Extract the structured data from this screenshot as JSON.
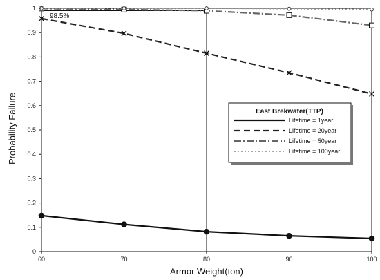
{
  "chart_data": {
    "type": "line",
    "title": "",
    "xlabel": "Armor Weight(ton)",
    "ylabel": "Probability Failure",
    "xlim": [
      60,
      100
    ],
    "ylim": [
      0,
      1
    ],
    "x_ticks": [
      "60",
      "70",
      "80",
      "90",
      "100"
    ],
    "y_ticks": [
      "0",
      "0.1",
      "0.2",
      "0.3",
      "0.4",
      "0.5",
      "0.6",
      "0.7",
      "0.8",
      "0.9",
      "1"
    ],
    "grid": false,
    "legend": {
      "title": "East Brekwater(TTP)",
      "placement": "center-right"
    },
    "x": [
      60,
      70,
      80,
      90,
      100
    ],
    "series": [
      {
        "name": "Lifetime = 1year",
        "values": [
          0.148,
          0.112,
          0.082,
          0.065,
          0.054
        ],
        "color": "#111111",
        "dash": "solid",
        "marker": "circle"
      },
      {
        "name": "Lifetime = 20year",
        "values": [
          0.958,
          0.897,
          0.815,
          0.735,
          0.648
        ],
        "color": "#222222",
        "dash": "dashed",
        "marker": "x"
      },
      {
        "name": "Lifetime = 50year",
        "values": [
          0.999,
          0.995,
          0.99,
          0.972,
          0.93
        ],
        "color": "#666666",
        "dash": "dashdot",
        "marker": "square"
      },
      {
        "name": "Lifetime = 100year",
        "values": [
          1.0,
          1.0,
          1.0,
          0.998,
          0.995
        ],
        "color": "#999999",
        "dash": "dotted",
        "marker": "diamond"
      }
    ],
    "annotations": [
      {
        "text": "98.5%"
      }
    ]
  }
}
